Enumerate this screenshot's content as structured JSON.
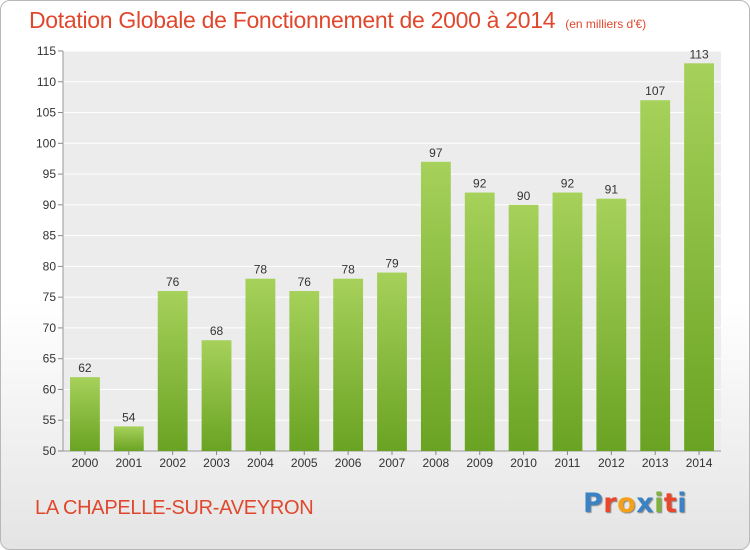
{
  "header": {
    "title": "Dotation Globale de Fonctionnement de 2000 à 2014",
    "unit": "(en milliers d'€)"
  },
  "footer": {
    "commune": "LA CHAPELLE-SUR-AVEYRON",
    "brand": "Proxiti",
    "brand_colors": [
      "#3b82c4",
      "#e8462d",
      "#f3a11a",
      "#3b82c4",
      "#7fb23a",
      "#e8462d",
      "#3b82c4"
    ]
  },
  "colors": {
    "title": "#e0482e",
    "bar_light": "#a6d15a",
    "bar_dark": "#6aa323",
    "plot_background": "#ececec",
    "grid": "#ffffff"
  },
  "chart_data": {
    "type": "bar",
    "categories": [
      "2000",
      "2001",
      "2002",
      "2003",
      "2004",
      "2005",
      "2006",
      "2007",
      "2008",
      "2009",
      "2010",
      "2011",
      "2012",
      "2013",
      "2014"
    ],
    "values": [
      62,
      54,
      76,
      68,
      78,
      76,
      78,
      79,
      97,
      92,
      90,
      92,
      91,
      107,
      113
    ],
    "ylim": [
      50,
      115
    ],
    "yticks": [
      50,
      55,
      60,
      65,
      70,
      75,
      80,
      85,
      90,
      95,
      100,
      105,
      110,
      115
    ],
    "grid": true,
    "data_labels": true
  }
}
